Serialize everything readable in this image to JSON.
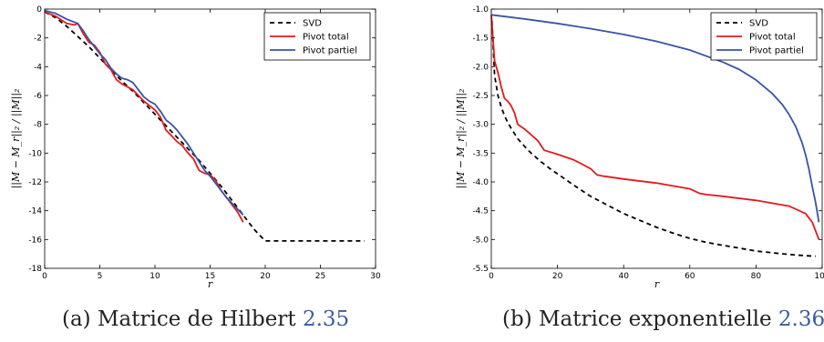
{
  "colors": {
    "svd": "#000000",
    "total": "#e41a1c",
    "partiel": "#3a53a4"
  },
  "chart_data": [
    {
      "type": "line",
      "xlabel": "r",
      "ylabel": "||M − M_r||₂ / ||M||₂",
      "xlim": [
        0,
        30
      ],
      "ylim": [
        -18,
        0
      ],
      "xticks": [
        0,
        5,
        10,
        15,
        20,
        25,
        30
      ],
      "yticks": [
        0,
        -2,
        -4,
        -6,
        -8,
        -10,
        -12,
        -14,
        -16,
        -18
      ],
      "legend": "top-right",
      "series": [
        {
          "name": "SVD",
          "style": "dashed",
          "color": "#000000",
          "x": [
            0,
            1,
            2,
            3,
            4,
            5,
            6,
            7,
            8,
            9,
            10,
            11,
            12,
            13,
            14,
            15,
            16,
            17,
            18,
            19,
            20,
            21,
            22,
            23,
            24,
            25,
            26,
            27,
            28,
            29
          ],
          "y": [
            -0.2,
            -0.6,
            -1.2,
            -1.9,
            -2.6,
            -3.4,
            -4.2,
            -5.0,
            -5.7,
            -6.5,
            -7.3,
            -8.1,
            -8.9,
            -9.7,
            -10.5,
            -11.4,
            -12.3,
            -13.3,
            -14.3,
            -15.3,
            -16.1,
            -16.1,
            -16.1,
            -16.1,
            -16.1,
            -16.1,
            -16.1,
            -16.1,
            -16.1,
            -16.1
          ]
        },
        {
          "name": "Pivot total",
          "style": "solid",
          "color": "#e41a1c",
          "x": [
            0,
            1,
            2,
            2.7,
            3,
            3.5,
            4,
            4.5,
            5,
            5.5,
            6,
            6.5,
            7,
            7.5,
            8,
            8.5,
            9,
            9.5,
            10,
            10.5,
            11,
            11.5,
            12,
            12.5,
            13,
            13.5,
            14,
            14.5,
            15,
            15.5,
            16,
            16.5,
            17,
            17.5,
            18
          ],
          "y": [
            -0.2,
            -0.5,
            -1.0,
            -1.1,
            -1.0,
            -1.7,
            -2.3,
            -2.5,
            -3.0,
            -3.8,
            -4.2,
            -4.9,
            -5.2,
            -5.4,
            -5.6,
            -6.0,
            -6.4,
            -6.7,
            -7.0,
            -7.5,
            -8.4,
            -8.8,
            -9.2,
            -9.5,
            -10.0,
            -10.4,
            -11.2,
            -11.4,
            -11.5,
            -11.9,
            -12.6,
            -13.1,
            -13.6,
            -14.1,
            -14.8
          ]
        },
        {
          "name": "Pivot partiel",
          "style": "solid",
          "color": "#3a53a4",
          "x": [
            0,
            1,
            2,
            3,
            3.5,
            4,
            4.5,
            5,
            5.5,
            6,
            6.5,
            7,
            7.5,
            8,
            8.5,
            9,
            9.5,
            10,
            10.5,
            11,
            11.5,
            12,
            12.5,
            13,
            13.5,
            14,
            14.5,
            15,
            15.5,
            16,
            16.5,
            17,
            17.5,
            18
          ],
          "y": [
            -0.1,
            -0.3,
            -0.7,
            -1.0,
            -1.5,
            -2.1,
            -2.6,
            -3.1,
            -3.5,
            -4.1,
            -4.5,
            -4.8,
            -4.9,
            -5.1,
            -5.6,
            -6.1,
            -6.4,
            -6.6,
            -7.1,
            -7.7,
            -8.0,
            -8.4,
            -8.9,
            -9.4,
            -10.0,
            -10.6,
            -11.2,
            -11.6,
            -12.1,
            -12.6,
            -13.1,
            -13.5,
            -13.9,
            -14.3
          ]
        }
      ]
    },
    {
      "type": "line",
      "xlabel": "r",
      "ylabel": "||M − M_r||₂ / ||M||₂",
      "xlim": [
        0,
        100
      ],
      "ylim": [
        -5.5,
        -1.0
      ],
      "xticks": [
        0,
        20,
        40,
        60,
        80,
        100
      ],
      "yticks": [
        -1.0,
        -1.5,
        -2.0,
        -2.5,
        -3.0,
        -3.5,
        -4.0,
        -4.5,
        -5.0,
        -5.5
      ],
      "legend": "top-right",
      "series": [
        {
          "name": "SVD",
          "style": "dashed",
          "color": "#000000",
          "x": [
            0.2,
            1,
            2,
            3,
            4,
            5,
            6,
            8,
            10,
            12,
            15,
            18,
            20,
            25,
            30,
            35,
            40,
            45,
            50,
            55,
            60,
            65,
            70,
            75,
            80,
            85,
            90,
            95,
            98
          ],
          "y": [
            -1.2,
            -2.15,
            -2.5,
            -2.7,
            -2.85,
            -2.97,
            -3.07,
            -3.25,
            -3.38,
            -3.5,
            -3.65,
            -3.78,
            -3.86,
            -4.06,
            -4.25,
            -4.4,
            -4.55,
            -4.67,
            -4.79,
            -4.89,
            -4.98,
            -5.05,
            -5.1,
            -5.15,
            -5.2,
            -5.23,
            -5.26,
            -5.28,
            -5.29
          ]
        },
        {
          "name": "Pivot total",
          "style": "solid",
          "color": "#e41a1c",
          "x": [
            0,
            0.5,
            1,
            2,
            3,
            4,
            5,
            6,
            7,
            8,
            10,
            12,
            14,
            16,
            20,
            25,
            30,
            32,
            34,
            40,
            50,
            60,
            63,
            65,
            70,
            80,
            90,
            95,
            97,
            99
          ],
          "y": [
            -1.1,
            -1.5,
            -1.9,
            -2.1,
            -2.35,
            -2.55,
            -2.6,
            -2.68,
            -2.8,
            -3.0,
            -3.08,
            -3.18,
            -3.28,
            -3.45,
            -3.52,
            -3.62,
            -3.77,
            -3.88,
            -3.9,
            -3.95,
            -4.02,
            -4.12,
            -4.2,
            -4.22,
            -4.25,
            -4.32,
            -4.42,
            -4.55,
            -4.7,
            -5.0
          ]
        },
        {
          "name": "Pivot partiel",
          "style": "solid",
          "color": "#3a53a4",
          "x": [
            0,
            10,
            20,
            30,
            40,
            50,
            60,
            70,
            75,
            80,
            85,
            88,
            90,
            92,
            94,
            95,
            96,
            97,
            98,
            99
          ],
          "y": [
            -1.1,
            -1.17,
            -1.25,
            -1.34,
            -1.44,
            -1.56,
            -1.71,
            -1.92,
            -2.05,
            -2.23,
            -2.47,
            -2.66,
            -2.83,
            -3.04,
            -3.33,
            -3.53,
            -3.78,
            -4.08,
            -4.35,
            -4.7
          ]
        }
      ]
    }
  ],
  "captions": [
    {
      "text": "(a) Matrice de Hilbert",
      "ref": "2.35"
    },
    {
      "text": "(b) Matrice exponentielle",
      "ref": "2.36"
    }
  ]
}
